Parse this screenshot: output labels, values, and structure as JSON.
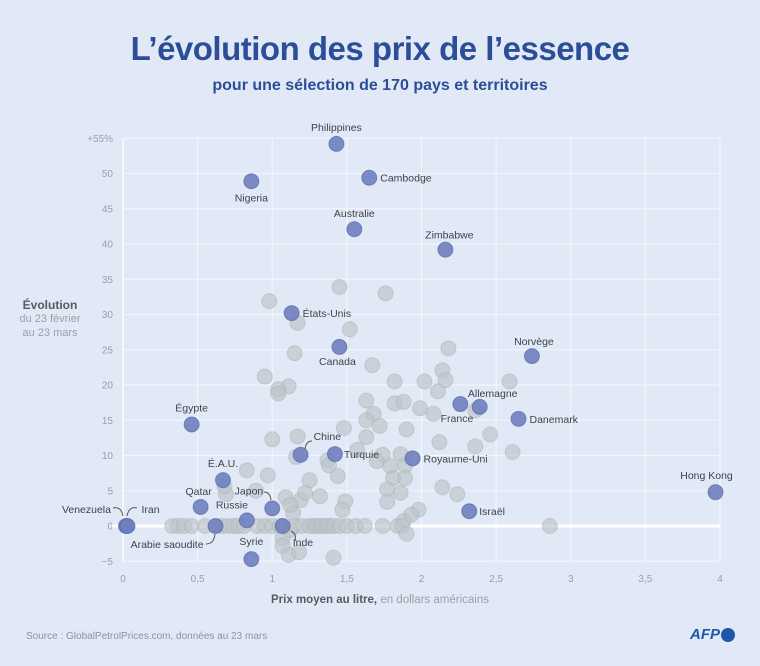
{
  "header": {
    "title": "L’évolution des prix de l’essence",
    "subtitle": "pour une sélection de 170 pays et territoires"
  },
  "footer": {
    "source": "Source : GlobalPetrolPrices.com, données au 23 mars",
    "logo_text": "AFP"
  },
  "colors": {
    "background": "#e2e9f6",
    "title": "#2c4d98",
    "highlight": "#6e7fc0",
    "other": "#bcc4c8"
  },
  "chart_data": {
    "type": "scatter",
    "title": "L’évolution des prix de l’essence",
    "subtitle": "pour une sélection de 170 pays et territoires",
    "xlabel_bold": "Prix moyen au litre,",
    "xlabel_rest": " en dollars américains",
    "ylabel_bold": "Évolution",
    "ylabel_rest": [
      "du 23 février",
      "au 23 mars"
    ],
    "xlim": [
      0,
      4
    ],
    "ylim": [
      -5,
      55
    ],
    "xticks": [
      "0",
      "0,5",
      "1",
      "1,5",
      "2",
      "2,5",
      "3",
      "3,5",
      "4"
    ],
    "xtick_values": [
      0,
      0.5,
      1,
      1.5,
      2,
      2.5,
      3,
      3.5,
      4
    ],
    "yticks": [
      "−5",
      "0",
      "5",
      "10",
      "15",
      "20",
      "25",
      "30",
      "35",
      "40",
      "45",
      "50",
      "+55%"
    ],
    "ytick_values": [
      -5,
      0,
      5,
      10,
      15,
      20,
      25,
      30,
      35,
      40,
      45,
      50,
      55
    ],
    "grid": true,
    "labeled_points": [
      {
        "name": "Philippines",
        "x": 1.43,
        "y": 54.2
      },
      {
        "name": "Cambodge",
        "x": 1.65,
        "y": 49.4
      },
      {
        "name": "Nigeria",
        "x": 0.86,
        "y": 48.9
      },
      {
        "name": "Australie",
        "x": 1.55,
        "y": 42.1
      },
      {
        "name": "Zimbabwe",
        "x": 2.16,
        "y": 39.2
      },
      {
        "name": "États-Unis",
        "x": 1.13,
        "y": 30.2
      },
      {
        "name": "Canada",
        "x": 1.45,
        "y": 25.4
      },
      {
        "name": "Norvège",
        "x": 2.74,
        "y": 24.1
      },
      {
        "name": "France",
        "x": 2.26,
        "y": 17.3
      },
      {
        "name": "Allemagne",
        "x": 2.39,
        "y": 16.9
      },
      {
        "name": "Danemark",
        "x": 2.65,
        "y": 15.2
      },
      {
        "name": "Égypte",
        "x": 0.46,
        "y": 14.4
      },
      {
        "name": "Chine",
        "x": 1.19,
        "y": 10.1
      },
      {
        "name": "Turquie",
        "x": 1.42,
        "y": 10.2
      },
      {
        "name": "Royaume-Uni",
        "x": 1.94,
        "y": 9.6
      },
      {
        "name": "É.A.U.",
        "x": 0.67,
        "y": 6.5
      },
      {
        "name": "Hong Kong",
        "x": 3.97,
        "y": 4.8
      },
      {
        "name": "Qatar",
        "x": 0.52,
        "y": 2.7
      },
      {
        "name": "Japon",
        "x": 1.0,
        "y": 2.5
      },
      {
        "name": "Israël",
        "x": 2.32,
        "y": 2.1
      },
      {
        "name": "Russie",
        "x": 0.83,
        "y": 0.8
      },
      {
        "name": "Venezuela",
        "x": 0.02,
        "y": 0
      },
      {
        "name": "Iran",
        "x": 0.03,
        "y": 0
      },
      {
        "name": "Arabie saoudite",
        "x": 0.62,
        "y": 0
      },
      {
        "name": "Inde",
        "x": 1.07,
        "y": 0
      },
      {
        "name": "Syrie",
        "x": 0.86,
        "y": -4.7
      }
    ],
    "other_points": [
      [
        1.45,
        33.9
      ],
      [
        1.76,
        33.0
      ],
      [
        0.98,
        31.9
      ],
      [
        1.17,
        28.8
      ],
      [
        1.52,
        27.9
      ],
      [
        1.15,
        24.5
      ],
      [
        2.18,
        25.2
      ],
      [
        1.67,
        22.8
      ],
      [
        2.14,
        22.1
      ],
      [
        2.59,
        20.5
      ],
      [
        2.02,
        20.5
      ],
      [
        0.95,
        21.2
      ],
      [
        1.11,
        19.8
      ],
      [
        1.04,
        19.4
      ],
      [
        1.04,
        18.8
      ],
      [
        1.82,
        20.5
      ],
      [
        2.16,
        20.7
      ],
      [
        1.63,
        17.8
      ],
      [
        1.82,
        17.4
      ],
      [
        2.11,
        19.1
      ],
      [
        1.99,
        16.7
      ],
      [
        1.88,
        17.6
      ],
      [
        1.68,
        15.9
      ],
      [
        1.63,
        15.0
      ],
      [
        2.08,
        15.9
      ],
      [
        2.36,
        16.4
      ],
      [
        1.48,
        13.9
      ],
      [
        1.72,
        14.2
      ],
      [
        1.9,
        13.7
      ],
      [
        2.12,
        11.9
      ],
      [
        2.46,
        13.0
      ],
      [
        1.63,
        12.6
      ],
      [
        1.0,
        12.3
      ],
      [
        1.17,
        12.7
      ],
      [
        1.37,
        9.3
      ],
      [
        1.57,
        10.8
      ],
      [
        1.74,
        10.1
      ],
      [
        1.86,
        10.2
      ],
      [
        2.61,
        10.5
      ],
      [
        2.36,
        11.3
      ],
      [
        1.7,
        9.2
      ],
      [
        1.79,
        8.5
      ],
      [
        1.89,
        8.6
      ],
      [
        1.38,
        8.6
      ],
      [
        0.83,
        7.9
      ],
      [
        0.97,
        7.2
      ],
      [
        1.25,
        6.5
      ],
      [
        1.44,
        7.1
      ],
      [
        1.81,
        6.8
      ],
      [
        2.14,
        5.5
      ],
      [
        2.24,
        4.5
      ],
      [
        1.89,
        6.8
      ],
      [
        1.77,
        5.2
      ],
      [
        0.89,
        5.0
      ],
      [
        1.86,
        4.7
      ],
      [
        0.69,
        4.5
      ],
      [
        1.09,
        4.1
      ],
      [
        1.19,
        3.7
      ],
      [
        1.22,
        4.7
      ],
      [
        1.32,
        4.2
      ],
      [
        1.49,
        3.5
      ],
      [
        1.47,
        2.3
      ],
      [
        1.77,
        3.4
      ],
      [
        1.98,
        2.3
      ],
      [
        1.93,
        1.6
      ],
      [
        1.88,
        0.7
      ],
      [
        1.14,
        1.8
      ],
      [
        1.12,
        3.0
      ],
      [
        0.68,
        5.6
      ],
      [
        1.16,
        9.8
      ],
      [
        0.33,
        0
      ],
      [
        0.37,
        0
      ],
      [
        0.41,
        0
      ],
      [
        0.46,
        0
      ],
      [
        0.55,
        0
      ],
      [
        0.66,
        0
      ],
      [
        0.7,
        0
      ],
      [
        0.74,
        0
      ],
      [
        0.77,
        0
      ],
      [
        0.81,
        0
      ],
      [
        0.9,
        0
      ],
      [
        0.95,
        0
      ],
      [
        1.0,
        0
      ],
      [
        1.05,
        0
      ],
      [
        1.15,
        0
      ],
      [
        1.2,
        0
      ],
      [
        1.25,
        0
      ],
      [
        1.28,
        0
      ],
      [
        1.3,
        0
      ],
      [
        1.33,
        0
      ],
      [
        1.36,
        0
      ],
      [
        1.38,
        0
      ],
      [
        1.41,
        0
      ],
      [
        1.45,
        0
      ],
      [
        1.5,
        0
      ],
      [
        1.56,
        0
      ],
      [
        1.62,
        0
      ],
      [
        1.74,
        0
      ],
      [
        1.84,
        0
      ],
      [
        1.87,
        0
      ],
      [
        2.86,
        0
      ],
      [
        1.07,
        -1.7
      ],
      [
        1.07,
        -2.8
      ],
      [
        1.11,
        -4.1
      ],
      [
        1.18,
        -3.7
      ],
      [
        1.41,
        -4.5
      ],
      [
        1.9,
        -1.1
      ],
      [
        1.12,
        -0.6
      ]
    ]
  }
}
